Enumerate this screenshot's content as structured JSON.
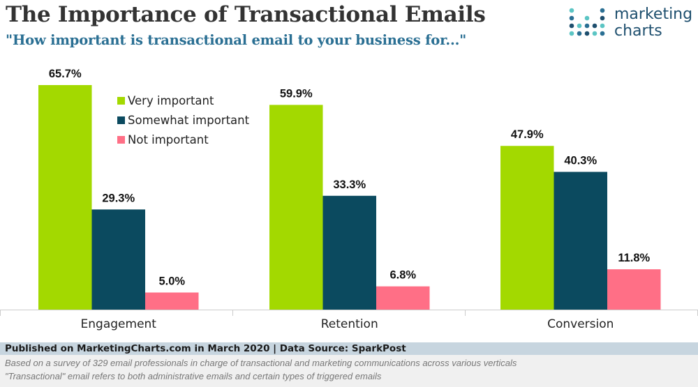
{
  "header": {
    "title": "The Importance of Transactional Emails",
    "subtitle": "\"How important is transactional email to your business for...\""
  },
  "logo": {
    "line1": "marketing",
    "line2": "charts",
    "dot_colors": [
      "#5bc5c4",
      "#2a6f93",
      "#1e4f6e"
    ]
  },
  "chart_data": {
    "type": "bar",
    "title": "The Importance of Transactional Emails",
    "subtitle": "\"How important is transactional email to your business for...\"",
    "categories": [
      "Engagement",
      "Retention",
      "Conversion"
    ],
    "series": [
      {
        "name": "Very important",
        "values": [
          65.7,
          59.9,
          47.9
        ],
        "labels": [
          "65.7%",
          "59.9%",
          "47.9%"
        ],
        "color": "#a3d900"
      },
      {
        "name": "Somewhat important",
        "values": [
          29.3,
          33.3,
          40.3
        ],
        "labels": [
          "29.3%",
          "33.3%",
          "40.3%"
        ],
        "color": "#0b4a5f"
      },
      {
        "name": "Not important",
        "values": [
          5.0,
          6.8,
          11.8
        ],
        "labels": [
          "5.0%",
          "6.8%",
          "11.8%"
        ],
        "color": "#ff6f86"
      }
    ],
    "ylim": [
      0,
      66
    ],
    "grid": false,
    "legend": "top-left (inside Engagement group)",
    "xlabel": "",
    "ylabel": ""
  },
  "footer": {
    "source": "Published on MarketingCharts.com in March 2020 | Data Source: SparkPost",
    "note1": "Based on a survey of 329 email professionals in charge of transactional and marketing communications across various verticals",
    "note2": "\"Transactional\" email refers to both administrative emails and certain types of triggered emails"
  }
}
